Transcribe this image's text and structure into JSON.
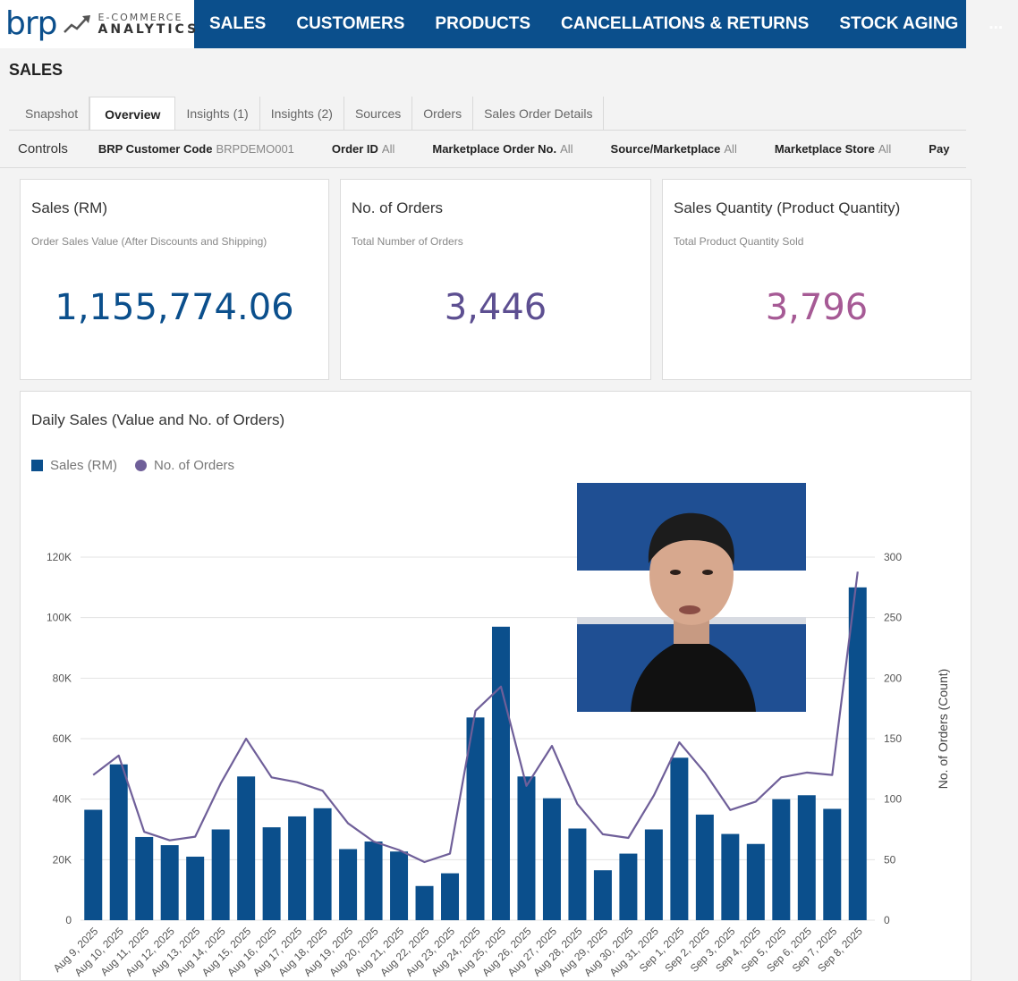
{
  "header": {
    "logo": {
      "brand": "brp",
      "line1": "E-COMMERCE",
      "line2": "ANALYTICS"
    },
    "nav": [
      {
        "label": "SALES",
        "name": "nav-sales"
      },
      {
        "label": "CUSTOMERS",
        "name": "nav-customers"
      },
      {
        "label": "PRODUCTS",
        "name": "nav-products"
      },
      {
        "label": "CANCELLATIONS & RETURNS",
        "name": "nav-cancellations-returns"
      },
      {
        "label": "STOCK AGING",
        "name": "nav-stock-aging"
      },
      {
        "label": "...",
        "name": "nav-more"
      }
    ]
  },
  "page": {
    "title": "SALES"
  },
  "tabs": [
    {
      "label": "Snapshot",
      "name": "tab-snapshot"
    },
    {
      "label": "Overview",
      "name": "tab-overview",
      "active": true
    },
    {
      "label": "Insights (1)",
      "name": "tab-insights-1"
    },
    {
      "label": "Insights (2)",
      "name": "tab-insights-2"
    },
    {
      "label": "Sources",
      "name": "tab-sources"
    },
    {
      "label": "Orders",
      "name": "tab-orders"
    },
    {
      "label": "Sales Order Details",
      "name": "tab-sales-order-details"
    }
  ],
  "controls": {
    "label": "Controls",
    "filters": [
      {
        "name": "BRP Customer Code",
        "value": "BRPDEMO001"
      },
      {
        "name": "Order ID",
        "value": "All"
      },
      {
        "name": "Marketplace Order No.",
        "value": "All"
      },
      {
        "name": "Source/Marketplace",
        "value": "All"
      },
      {
        "name": "Marketplace Store",
        "value": "All"
      },
      {
        "name": "Pay",
        "value": ""
      }
    ]
  },
  "kpis": [
    {
      "title": "Sales (RM)",
      "subtitle": "Order Sales Value  (After Discounts and Shipping)",
      "value": "1,155,774.06",
      "color": "#0b4f8c"
    },
    {
      "title": "No. of Orders",
      "subtitle": "Total Number of Orders",
      "value": "3,446",
      "color": "#5d4f91"
    },
    {
      "title": "Sales Quantity (Product Quantity)",
      "subtitle": "Total Product Quantity Sold",
      "value": "3,796",
      "color": "#a65a95"
    }
  ],
  "colors": {
    "bar": "#0b4f8c",
    "line": "#6f5f99",
    "nav": "#0b4f8c"
  },
  "chart_data": {
    "type": "bar",
    "title": "Daily Sales (Value and No. of Orders)",
    "ylabel": "",
    "y2label": "No. of Orders (Count)",
    "ylim": [
      0,
      120000
    ],
    "y2lim": [
      0,
      300
    ],
    "yticks": [
      "0",
      "20K",
      "40K",
      "60K",
      "80K",
      "100K",
      "120K"
    ],
    "y2ticks": [
      "0",
      "50",
      "100",
      "150",
      "200",
      "250",
      "300"
    ],
    "grid": true,
    "legend_position": "top-left",
    "categories": [
      "Aug 9, 2025",
      "Aug 10, 2025",
      "Aug 11, 2025",
      "Aug 12, 2025",
      "Aug 13, 2025",
      "Aug 14, 2025",
      "Aug 15, 2025",
      "Aug 16, 2025",
      "Aug 17, 2025",
      "Aug 18, 2025",
      "Aug 19, 2025",
      "Aug 20, 2025",
      "Aug 21, 2025",
      "Aug 22, 2025",
      "Aug 23, 2025",
      "Aug 24, 2025",
      "Aug 25, 2025",
      "Aug 26, 2025",
      "Aug 27, 2025",
      "Aug 28, 2025",
      "Aug 29, 2025",
      "Aug 30, 2025",
      "Aug 31, 2025",
      "Sep 1, 2025",
      "Sep 2, 2025",
      "Sep 3, 2025",
      "Sep 4, 2025",
      "Sep 5, 2025",
      "Sep 6, 2025",
      "Sep 7, 2025",
      "Sep 8, 2025"
    ],
    "series": [
      {
        "name": "Sales (RM)",
        "type": "bar",
        "axis": "left",
        "values": [
          36500,
          51500,
          27500,
          24800,
          21000,
          30000,
          47500,
          30700,
          34300,
          37000,
          23500,
          26000,
          22700,
          11300,
          15500,
          67000,
          97000,
          47500,
          40300,
          30300,
          16500,
          22000,
          30000,
          53700,
          34900,
          28500,
          25200,
          40000,
          41300,
          36800,
          110000
        ]
      },
      {
        "name": "No. of Orders",
        "type": "line",
        "axis": "right",
        "values": [
          120,
          136,
          73,
          66,
          69,
          113,
          150,
          118,
          114,
          107,
          80,
          65,
          58,
          48,
          55,
          173,
          193,
          111,
          144,
          96,
          71,
          68,
          103,
          147,
          122,
          91,
          98,
          118,
          122,
          120,
          288
        ]
      }
    ]
  }
}
